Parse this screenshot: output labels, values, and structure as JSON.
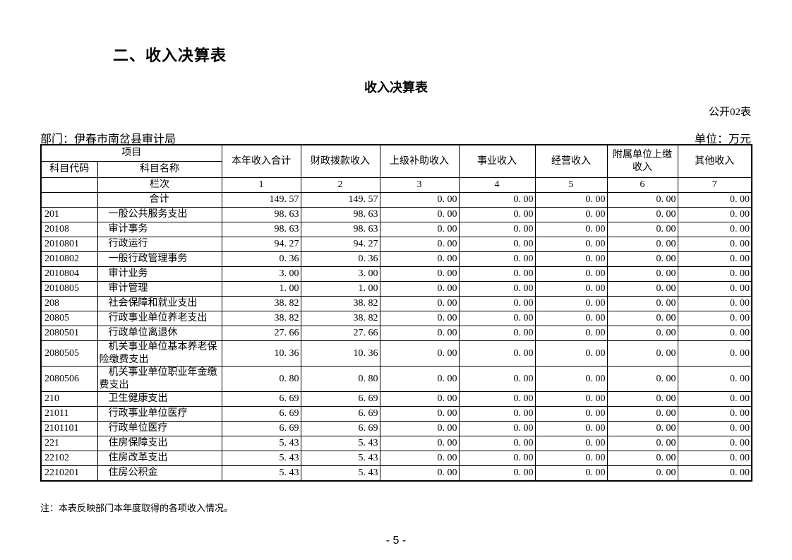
{
  "page": {
    "section_heading": "二、收入决算表",
    "table_title": "收入决算表",
    "table_code": "公开02表",
    "department": "部门：伊春市南岔县审计局",
    "unit": "单位：万元",
    "note": "注：本表反映部门本年度取得的各项收入情况。",
    "page_number": "- 5 -"
  },
  "table": {
    "header": {
      "project": "项目",
      "code": "科目代码",
      "name": "科目名称",
      "lanci_label": "栏次",
      "columns": [
        "本年收入合计",
        "财政拨款收入",
        "上级补助收入",
        "事业收入",
        "经营收入",
        "附属单位上缴收入",
        "其他收入"
      ],
      "column_numbers": [
        "1",
        "2",
        "3",
        "4",
        "5",
        "6",
        "7"
      ]
    },
    "rows": [
      {
        "code": "",
        "name": "合计",
        "values": [
          "149. 57",
          "149. 57",
          "0. 00",
          "0. 00",
          "0. 00",
          "0. 00",
          "0. 00"
        ]
      },
      {
        "code": "201",
        "name": "一般公共服务支出",
        "values": [
          "98. 63",
          "98. 63",
          "0. 00",
          "0. 00",
          "0. 00",
          "0. 00",
          "0. 00"
        ]
      },
      {
        "code": "20108",
        "name": "审计事务",
        "values": [
          "98. 63",
          "98. 63",
          "0. 00",
          "0. 00",
          "0. 00",
          "0. 00",
          "0. 00"
        ]
      },
      {
        "code": "2010801",
        "name": "行政运行",
        "values": [
          "94. 27",
          "94. 27",
          "0. 00",
          "0. 00",
          "0. 00",
          "0. 00",
          "0. 00"
        ]
      },
      {
        "code": "2010802",
        "name": "一般行政管理事务",
        "values": [
          "0. 36",
          "0. 36",
          "0. 00",
          "0. 00",
          "0. 00",
          "0. 00",
          "0. 00"
        ]
      },
      {
        "code": "2010804",
        "name": "审计业务",
        "values": [
          "3. 00",
          "3. 00",
          "0. 00",
          "0. 00",
          "0. 00",
          "0. 00",
          "0. 00"
        ]
      },
      {
        "code": "2010805",
        "name": "审计管理",
        "values": [
          "1. 00",
          "1. 00",
          "0. 00",
          "0. 00",
          "0. 00",
          "0. 00",
          "0. 00"
        ]
      },
      {
        "code": "208",
        "name": "社会保障和就业支出",
        "values": [
          "38. 82",
          "38. 82",
          "0. 00",
          "0. 00",
          "0. 00",
          "0. 00",
          "0. 00"
        ]
      },
      {
        "code": "20805",
        "name": "行政事业单位养老支出",
        "values": [
          "38. 82",
          "38. 82",
          "0. 00",
          "0. 00",
          "0. 00",
          "0. 00",
          "0. 00"
        ]
      },
      {
        "code": "2080501",
        "name": "行政单位离退休",
        "values": [
          "27. 66",
          "27. 66",
          "0. 00",
          "0. 00",
          "0. 00",
          "0. 00",
          "0. 00"
        ]
      },
      {
        "code": "2080505",
        "name": "机关事业单位基本养老保险缴费支出",
        "values": [
          "10. 36",
          "10. 36",
          "0. 00",
          "0. 00",
          "0. 00",
          "0. 00",
          "0. 00"
        ]
      },
      {
        "code": "2080506",
        "name": "机关事业单位职业年金缴费支出",
        "values": [
          "0. 80",
          "0. 80",
          "0. 00",
          "0. 00",
          "0. 00",
          "0. 00",
          "0. 00"
        ]
      },
      {
        "code": "210",
        "name": "卫生健康支出",
        "values": [
          "6. 69",
          "6. 69",
          "0. 00",
          "0. 00",
          "0. 00",
          "0. 00",
          "0. 00"
        ]
      },
      {
        "code": "21011",
        "name": "行政事业单位医疗",
        "values": [
          "6. 69",
          "6. 69",
          "0. 00",
          "0. 00",
          "0. 00",
          "0. 00",
          "0. 00"
        ]
      },
      {
        "code": "2101101",
        "name": "行政单位医疗",
        "values": [
          "6. 69",
          "6. 69",
          "0. 00",
          "0. 00",
          "0. 00",
          "0. 00",
          "0. 00"
        ]
      },
      {
        "code": "221",
        "name": "住房保障支出",
        "values": [
          "5. 43",
          "5. 43",
          "0. 00",
          "0. 00",
          "0. 00",
          "0. 00",
          "0. 00"
        ]
      },
      {
        "code": "22102",
        "name": "住房改革支出",
        "values": [
          "5. 43",
          "5. 43",
          "0. 00",
          "0. 00",
          "0. 00",
          "0. 00",
          "0. 00"
        ]
      },
      {
        "code": "2210201",
        "name": "住房公积金",
        "values": [
          "5. 43",
          "5. 43",
          "0. 00",
          "0. 00",
          "0. 00",
          "0. 00",
          "0. 00"
        ]
      }
    ]
  }
}
